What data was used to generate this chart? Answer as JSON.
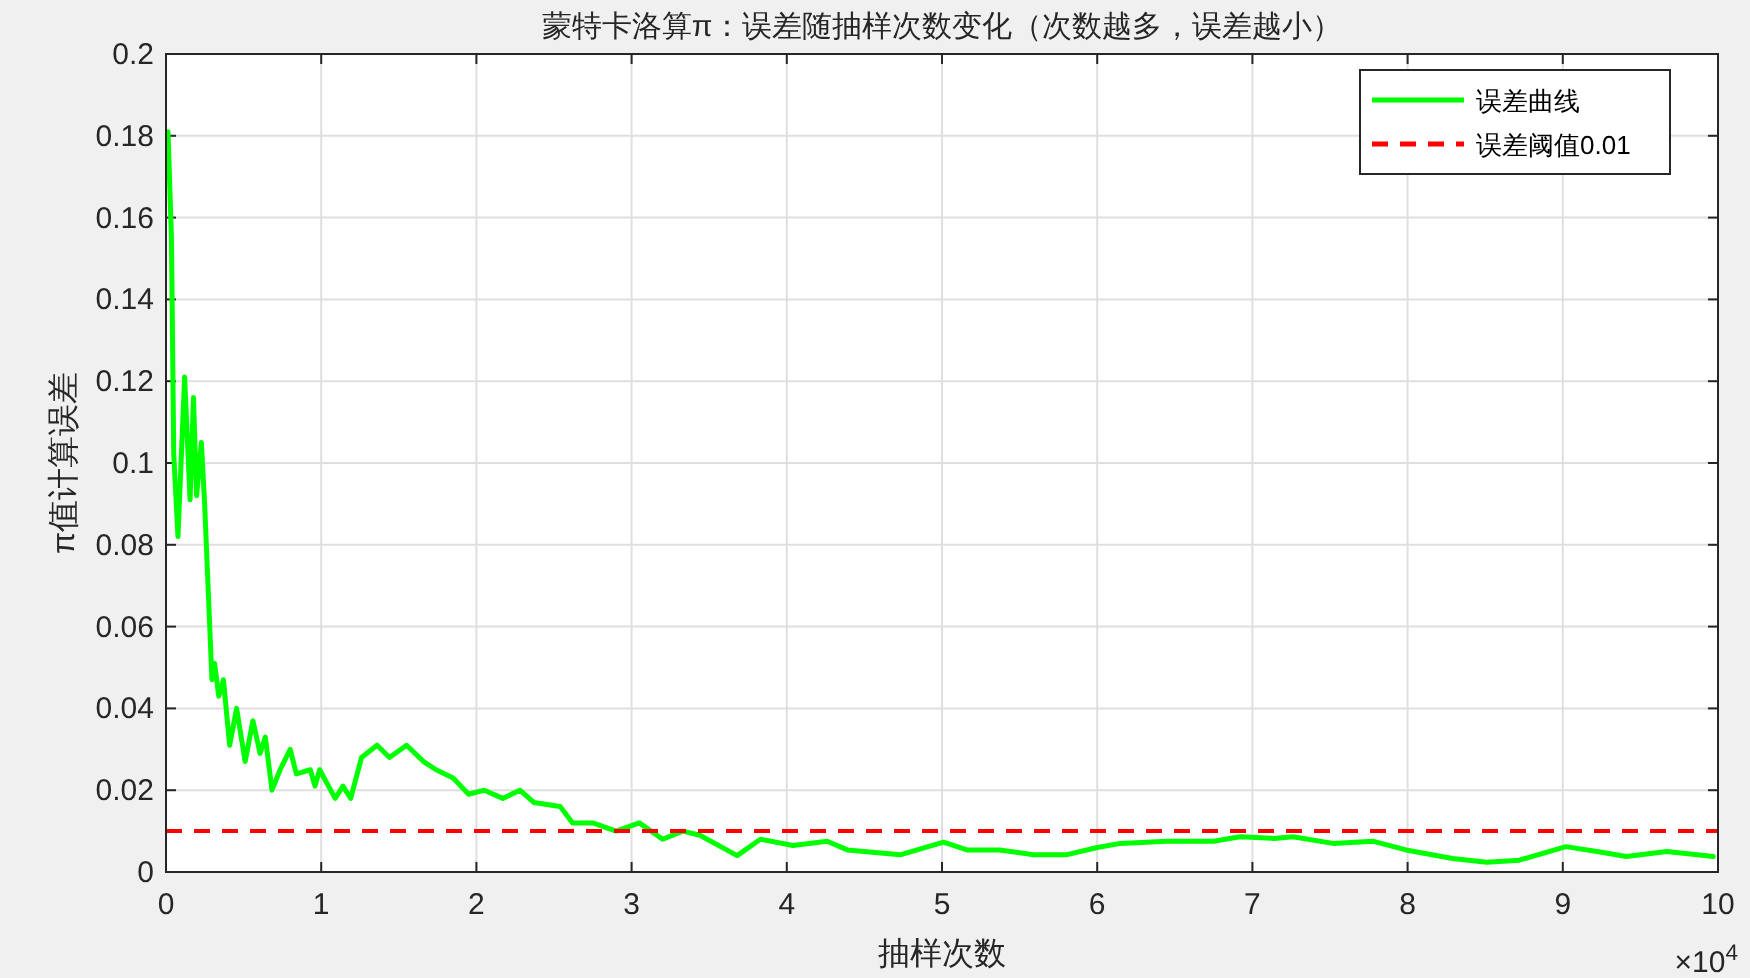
{
  "chart_data": {
    "type": "line",
    "title": "蒙特卡洛算π：误差随抽样次数变化（次数越多，误差越小）",
    "xlabel": "抽样次数",
    "ylabel": "π值计算误差",
    "series": [
      {
        "name": "误差曲线",
        "color": "#00ff00",
        "x": [
          0.013,
          0.035,
          0.05,
          0.077,
          0.12,
          0.155,
          0.177,
          0.197,
          0.228,
          0.249,
          0.296,
          0.313,
          0.34,
          0.37,
          0.41,
          0.455,
          0.51,
          0.56,
          0.606,
          0.64,
          0.683,
          0.735,
          0.8,
          0.84,
          0.93,
          0.96,
          0.99,
          1.09,
          1.14,
          1.19,
          1.26,
          1.36,
          1.44,
          1.55,
          1.66,
          1.74,
          1.85,
          1.95,
          2.05,
          2.17,
          2.28,
          2.37,
          2.54,
          2.62,
          2.75,
          2.9,
          3.05,
          3.2,
          3.33,
          3.44,
          3.68,
          3.83,
          4.04,
          4.26,
          4.39,
          4.73,
          5.01,
          5.16,
          5.37,
          5.59,
          5.8,
          6.0,
          6.15,
          6.45,
          6.75,
          6.92,
          7.14,
          7.26,
          7.52,
          7.78,
          7.99,
          8.29,
          8.51,
          8.72,
          9.02,
          9.24,
          9.41,
          9.67,
          9.97
        ],
        "values": [
          0.181,
          0.155,
          0.102,
          0.082,
          0.121,
          0.091,
          0.116,
          0.092,
          0.105,
          0.09,
          0.047,
          0.051,
          0.043,
          0.047,
          0.031,
          0.04,
          0.027,
          0.037,
          0.029,
          0.033,
          0.02,
          0.025,
          0.03,
          0.024,
          0.025,
          0.021,
          0.025,
          0.018,
          0.021,
          0.018,
          0.028,
          0.031,
          0.028,
          0.031,
          0.027,
          0.025,
          0.023,
          0.019,
          0.02,
          0.018,
          0.02,
          0.017,
          0.016,
          0.012,
          0.012,
          0.01,
          0.012,
          0.008,
          0.01,
          0.009,
          0.004,
          0.008,
          0.0065,
          0.0075,
          0.0054,
          0.0042,
          0.0073,
          0.0054,
          0.0054,
          0.0042,
          0.0042,
          0.006,
          0.007,
          0.0075,
          0.0075,
          0.0086,
          0.0082,
          0.0086,
          0.007,
          0.0075,
          0.0054,
          0.0033,
          0.0024,
          0.0029,
          0.0062,
          0.0049,
          0.0038,
          0.005,
          0.0038
        ]
      }
    ],
    "ref_lines": [
      {
        "axis": "y",
        "value": 0.01,
        "label": "误差阈值0.01",
        "color": "#ff0000",
        "line_style": "dashed"
      }
    ],
    "xlim": [
      0,
      10
    ],
    "ylim": [
      0,
      0.2
    ],
    "xticks": [
      0,
      1,
      2,
      3,
      4,
      5,
      6,
      7,
      8,
      9,
      10
    ],
    "yticks": [
      0,
      0.02,
      0.04,
      0.06,
      0.08,
      0.1,
      0.12,
      0.14,
      0.16,
      0.18,
      0.2
    ],
    "grid": true,
    "legend": "top right",
    "annotations": [
      "×10$^{4}$"
    ]
  }
}
